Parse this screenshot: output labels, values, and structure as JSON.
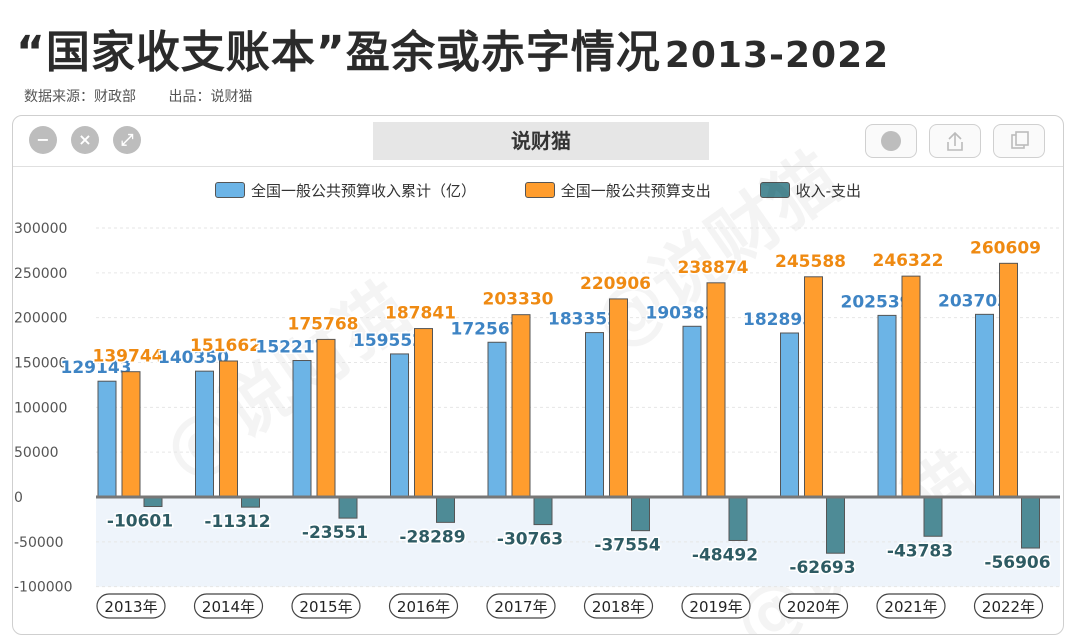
{
  "header": {
    "title": "“国家收支账本”盈余或赤字情况",
    "years_range": "2013-2022",
    "source": "数据来源：财政部",
    "producer": "出品：说财猫"
  },
  "window": {
    "tab_label": "说财猫",
    "buttons": [
      "minimize-icon",
      "close-icon",
      "resize-icon"
    ],
    "right_buttons": [
      "record-icon",
      "share-icon",
      "copy-icon"
    ]
  },
  "watermark": "@说财猫",
  "colors": {
    "income": "#6cb4e6",
    "expense": "#ff9d2e",
    "balance": "#4e8b96",
    "income_label": "#3e84c4",
    "expense_label": "#ef8a12",
    "balance_label": "#2e5b63"
  },
  "chart_data": {
    "type": "bar",
    "title": "“国家收支账本”盈余或赤字情况 2013-2022",
    "categories": [
      "2013年",
      "2014年",
      "2015年",
      "2016年",
      "2017年",
      "2018年",
      "2019年",
      "2020年",
      "2021年",
      "2022年"
    ],
    "series": [
      {
        "name": "全国一般公共预算收入累计（亿）",
        "values": [
          129143,
          140350,
          152217,
          159552,
          172567,
          183352,
          190382,
          182895,
          202539,
          203703
        ]
      },
      {
        "name": "全国一般公共预算支出",
        "values": [
          139744,
          151662,
          175768,
          187841,
          203330,
          220906,
          238874,
          245588,
          246322,
          260609
        ]
      },
      {
        "name": "收入-支出",
        "values": [
          -10601,
          -11312,
          -23551,
          -28289,
          -30763,
          -37554,
          -48492,
          -62693,
          -43783,
          -56906
        ]
      }
    ],
    "yticks": [
      300000,
      250000,
      200000,
      150000,
      100000,
      50000,
      0,
      -50000,
      -100000
    ],
    "ylim": [
      -100000,
      300000
    ],
    "legend_position": "top"
  }
}
